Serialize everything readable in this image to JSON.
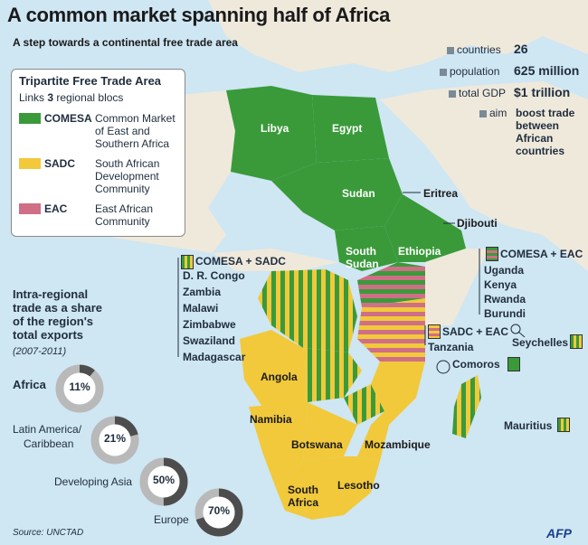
{
  "title": "A common market spanning half of Africa",
  "subtitle": "A step towards a continental free trade area",
  "colors": {
    "comesa": "#3a9a3a",
    "sadc": "#f1c93b",
    "eac": "#cf6f86",
    "sea": "#cfe6f3",
    "land": "#efe9dc"
  },
  "stats": [
    {
      "label": "countries",
      "value": "26"
    },
    {
      "label": "population",
      "value": "625 million"
    },
    {
      "label": "total GDP",
      "value": "$1 trillion"
    },
    {
      "label": "aim",
      "value_lines": [
        "boost trade",
        "between",
        "African",
        "countries"
      ]
    }
  ],
  "legend": {
    "title": "Tripartite Free Trade Area",
    "subtitle_pre": "Links",
    "subtitle_num": "3",
    "subtitle_post": "regional blocs",
    "items": [
      {
        "code": "COMESA",
        "desc_lines": [
          "Common Market",
          "of East and",
          "Southern Africa"
        ]
      },
      {
        "code": "SADC",
        "desc_lines": [
          "South African",
          "Development",
          "Community"
        ]
      },
      {
        "code": "EAC",
        "desc_lines": [
          "East African",
          "Community"
        ]
      }
    ]
  },
  "countries": {
    "libya": "Libya",
    "egypt": "Egypt",
    "sudan": "Sudan",
    "eritrea": "Eritrea",
    "djibouti": "Djibouti",
    "south_sudan_1": "South",
    "south_sudan_2": "Sudan",
    "ethiopia": "Ethiopia",
    "angola": "Angola",
    "namibia": "Namibia",
    "botswana": "Botswana",
    "mozambique": "Mozambique",
    "south_africa_1": "South",
    "south_africa_2": "Africa",
    "lesotho": "Lesotho"
  },
  "groups": {
    "comesa_sadc": {
      "label": "COMESA + SADC",
      "members": [
        "D. R. Congo",
        "Zambia",
        "Malawi",
        "Zimbabwe",
        "Swaziland",
        "Madagascar"
      ]
    },
    "comesa_eac": {
      "label": "COMESA + EAC",
      "members": [
        "Uganda",
        "Kenya",
        "Rwanda",
        "Burundi"
      ]
    },
    "sadc_eac": {
      "label": "SADC + EAC",
      "members": [
        "Tanzania"
      ]
    }
  },
  "islands": {
    "seychelles": "Seychelles",
    "comoros": "Comoros",
    "mauritius": "Mauritius"
  },
  "trade": {
    "heading_lines": [
      "Intra-regional",
      "trade as a share",
      "of the region's",
      "total exports"
    ],
    "period": "(2007-2011)",
    "items": [
      {
        "label": "Africa",
        "value": 11,
        "display": "11%"
      },
      {
        "label_lines": [
          "Latin America/",
          "Caribbean"
        ],
        "value": 21,
        "display": "21%"
      },
      {
        "label": "Developing Asia",
        "value": 50,
        "display": "50%"
      },
      {
        "label": "Europe",
        "value": 70,
        "display": "70%"
      }
    ]
  },
  "source": "Source: UNCTAD",
  "agency": "AFP"
}
